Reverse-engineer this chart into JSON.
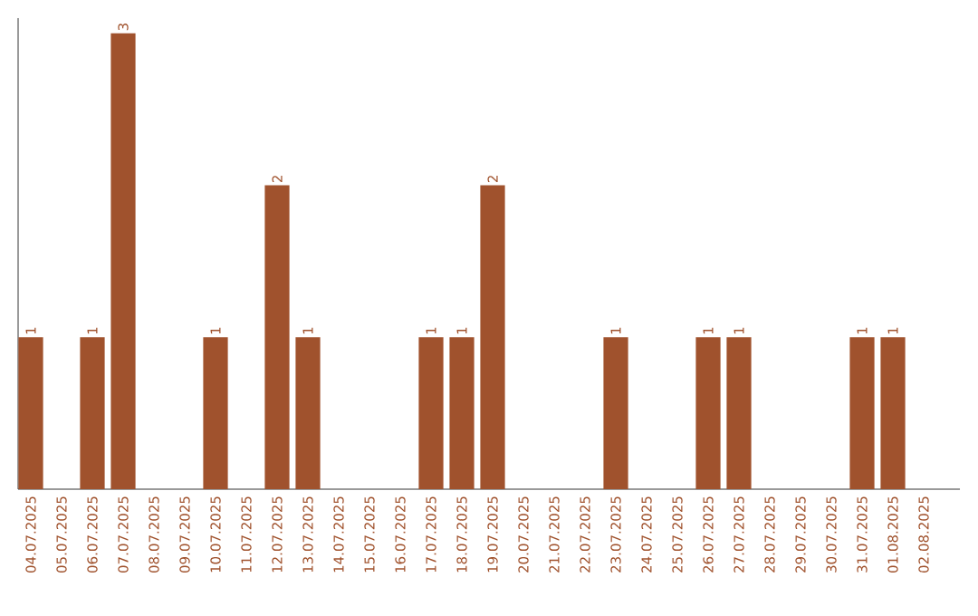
{
  "chart_data": {
    "type": "bar",
    "categories": [
      "04.07.2025",
      "05.07.2025",
      "06.07.2025",
      "07.07.2025",
      "08.07.2025",
      "09.07.2025",
      "10.07.2025",
      "11.07.2025",
      "12.07.2025",
      "13.07.2025",
      "14.07.2025",
      "15.07.2025",
      "16.07.2025",
      "17.07.2025",
      "18.07.2025",
      "19.07.2025",
      "20.07.2025",
      "21.07.2025",
      "22.07.2025",
      "23.07.2025",
      "24.07.2025",
      "25.07.2025",
      "26.07.2025",
      "27.07.2025",
      "28.07.2025",
      "29.07.2025",
      "30.07.2025",
      "31.07.2025",
      "01.08.2025",
      "02.08.2025"
    ],
    "values": [
      1,
      0,
      1,
      3,
      0,
      0,
      1,
      0,
      2,
      1,
      0,
      0,
      0,
      1,
      1,
      2,
      0,
      0,
      0,
      1,
      0,
      0,
      1,
      1,
      0,
      0,
      0,
      1,
      1,
      0
    ],
    "value_labels": [
      "1",
      null,
      "1",
      "3",
      null,
      null,
      "1",
      null,
      "2",
      "1",
      null,
      null,
      null,
      "1",
      "1",
      "2",
      null,
      null,
      null,
      "1",
      null,
      null,
      "1",
      "1",
      null,
      null,
      null,
      "1",
      "1",
      null
    ],
    "color": "#a0522d",
    "ylim": [
      0,
      3.1
    ],
    "tick_labels": "x"
  }
}
